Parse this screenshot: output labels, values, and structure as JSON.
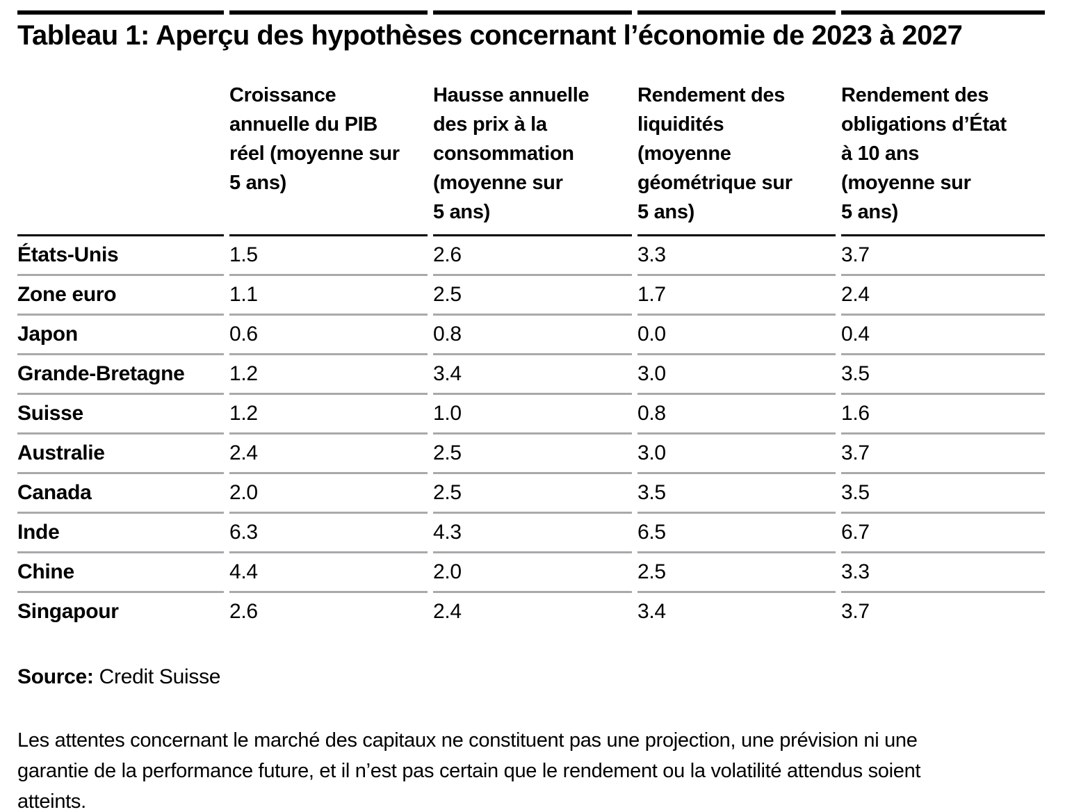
{
  "page": {
    "title": "Tableau 1: Aperçu des hypothèses concernant l’économie de 2023 à 2027"
  },
  "table": {
    "headers": [
      "",
      "Croissance\nannuelle du PIB\nréel (moyenne sur\n5 ans)",
      "Hausse annuelle\ndes prix à la\nconsommation\n(moyenne sur\n5 ans)",
      "Rendement des\nliquidités\n(moyenne\ngéométrique sur\n5 ans)",
      "Rendement des\nobligations d’État\nà 10 ans\n(moyenne sur\n5 ans)"
    ],
    "rows": [
      {
        "label": "États-Unis",
        "values": [
          "1.5",
          "2.6",
          "3.3",
          "3.7"
        ]
      },
      {
        "label": "Zone euro",
        "values": [
          "1.1",
          "2.5",
          "1.7",
          "2.4"
        ]
      },
      {
        "label": "Japon",
        "values": [
          "0.6",
          "0.8",
          "0.0",
          "0.4"
        ]
      },
      {
        "label": "Grande-Bretagne",
        "values": [
          "1.2",
          "3.4",
          "3.0",
          "3.5"
        ]
      },
      {
        "label": "Suisse",
        "values": [
          "1.2",
          "1.0",
          "0.8",
          "1.6"
        ]
      },
      {
        "label": "Australie",
        "values": [
          "2.4",
          "2.5",
          "3.0",
          "3.7"
        ]
      },
      {
        "label": "Canada",
        "values": [
          "2.0",
          "2.5",
          "3.5",
          "3.5"
        ]
      },
      {
        "label": "Inde",
        "values": [
          "6.3",
          "4.3",
          "6.5",
          "6.7"
        ]
      },
      {
        "label": "Chine",
        "values": [
          "4.4",
          "2.0",
          "2.5",
          "3.3"
        ]
      },
      {
        "label": "Singapour",
        "values": [
          "2.6",
          "2.4",
          "3.4",
          "3.7"
        ]
      }
    ]
  },
  "source": {
    "label": "Source:",
    "value": "Credit Suisse"
  },
  "disclaimer": "Les attentes concernant le marché des capitaux ne constituent pas une projection, une prévision ni une\ngarantie de la performance future, et il n’est pas certain que le rendement ou la volatilité attendus soient\natteints.",
  "colors": {
    "rule_black": "#000000",
    "row_separator": "#a9a9ac",
    "text": "#000000"
  }
}
